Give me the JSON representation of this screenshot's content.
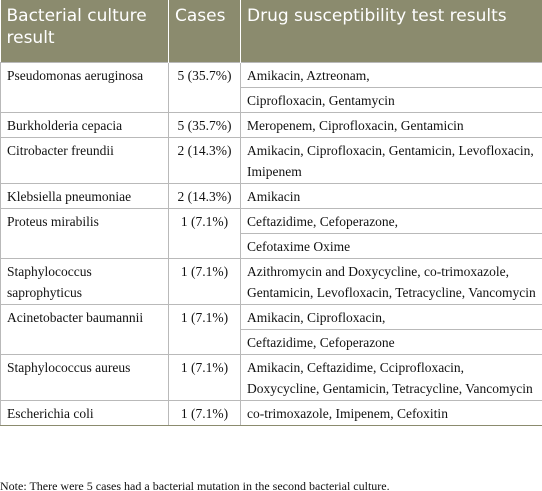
{
  "table": {
    "header": [
      "Bacterial culture result",
      "Cases",
      "Drug susceptibility test results"
    ],
    "rows": [
      {
        "culture": "Pseudomonas aeruginosa",
        "cases": "5 (35.7%)",
        "results": [
          "Amikacin, Aztreonam,",
          "Ciprofloxacin, Gentamycin"
        ]
      },
      {
        "culture": "Burkholderia cepacia",
        "cases": "5 (35.7%)",
        "results": [
          "Meropenem, Ciprofloxacin, Gentamicin"
        ]
      },
      {
        "culture": "Citrobacter freundii",
        "cases": "2 (14.3%)",
        "results": [
          "Amikacin, Ciprofloxacin, Gentamicin, Levofloxacin, Imipenem"
        ]
      },
      {
        "culture": "Klebsiella pneumoniae",
        "cases": "2 (14.3%)",
        "results": [
          "Amikacin"
        ]
      },
      {
        "culture": "Proteus mirabilis",
        "cases": "1 (7.1%)",
        "results": [
          "Ceftazidime, Cefoperazone,",
          "Cefotaxime Oxime"
        ]
      },
      {
        "culture": "Staphylococcus saprophyticus",
        "cases": "1 (7.1%)",
        "results": [
          "Azithromycin and Doxycycline, co-trimoxazole, Gentamicin, Levofloxacin, Tetracycline, Vancomycin"
        ]
      },
      {
        "culture": "Acinetobacter baumannii",
        "cases": "1 (7.1%)",
        "results": [
          "Amikacin, Ciprofloxacin,",
          "Ceftazidime, Cefoperazone"
        ]
      },
      {
        "culture": "Staphylococcus aureus",
        "cases": "1 (7.1%)",
        "results": [
          "Amikacin, Ceftazidime, Cciprofloxacin, Doxycycline, Gentamicin, Tetracycline, Vancomycin"
        ]
      },
      {
        "culture": "Escherichia coli",
        "cases": "1 (7.1%)",
        "results": [
          "co-trimoxazole, Imipenem, Cefoxitin"
        ]
      }
    ]
  },
  "note": "Note: There were 5 cases had a bacterial mutation in the second bacterial culture."
}
